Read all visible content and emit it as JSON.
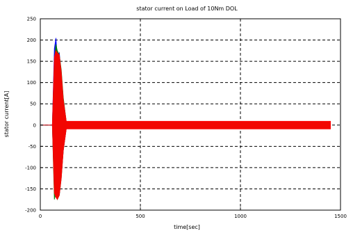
{
  "chart_data": {
    "type": "line",
    "title": "stator current on Load of 10Nm DOL",
    "xlabel": "time[sec]",
    "ylabel": "stator current[A]",
    "xlim": [
      0,
      1500
    ],
    "ylim": [
      -200,
      250
    ],
    "xticks": [
      0,
      500,
      1000,
      1500
    ],
    "xtick_labels": [
      "0",
      "500",
      "1000",
      "1500"
    ],
    "yticks": [
      -200,
      -150,
      -100,
      -50,
      0,
      50,
      100,
      150,
      200,
      250
    ],
    "ytick_labels": [
      "-200",
      "-150",
      "-100",
      "-50",
      "0",
      "50",
      "100",
      "150",
      "200",
      "250"
    ],
    "grid": true,
    "series": [
      {
        "color": "#0000ff",
        "x": [
          0,
          60,
          70,
          78,
          85,
          95,
          105,
          115,
          130,
          1450
        ],
        "max": [
          0,
          0,
          180,
          205,
          160,
          170,
          120,
          60,
          8,
          8
        ],
        "min": [
          0,
          0,
          -150,
          -160,
          -170,
          -165,
          -120,
          -60,
          -8,
          -8
        ]
      },
      {
        "color": "#008000",
        "x": [
          0,
          60,
          70,
          78,
          85,
          95,
          105,
          115,
          130,
          1450
        ],
        "max": [
          0,
          0,
          150,
          190,
          175,
          165,
          130,
          65,
          8,
          8
        ],
        "min": [
          0,
          0,
          -175,
          -160,
          -175,
          -165,
          -125,
          -60,
          -8,
          -8
        ]
      },
      {
        "color": "#ff0000",
        "x": [
          0,
          60,
          70,
          78,
          85,
          95,
          105,
          115,
          130,
          1450
        ],
        "max": [
          0,
          0,
          160,
          175,
          170,
          165,
          125,
          60,
          9,
          9
        ],
        "min": [
          0,
          0,
          -160,
          -170,
          -175,
          -165,
          -125,
          -60,
          -9,
          -9
        ]
      }
    ]
  }
}
